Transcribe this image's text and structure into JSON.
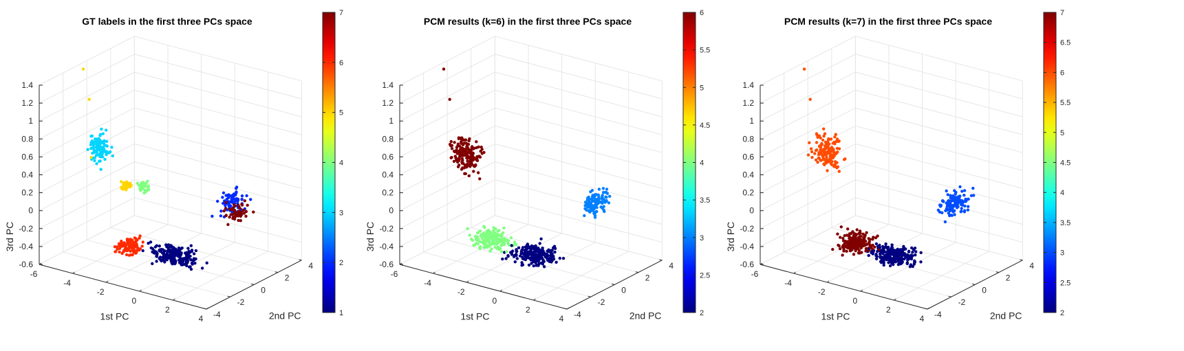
{
  "chart_data": [
    {
      "type": "scatter",
      "title": "GT labels in the first three PCs space",
      "xlabel": "1st PC",
      "ylabel": "2nd PC",
      "zlabel": "3rd PC",
      "xlim": [
        -6,
        4
      ],
      "ylim": [
        -4,
        4
      ],
      "zlim": [
        -0.6,
        1.4
      ],
      "xticks": [
        "-6",
        "-4",
        "-2",
        "0",
        "2",
        "4"
      ],
      "yticks": [
        "-4",
        "-2",
        "0",
        "2",
        "4"
      ],
      "zticks": [
        "-0.6",
        "-0.4",
        "-0.2",
        "0",
        "0.2",
        "0.4",
        "0.6",
        "0.8",
        "1",
        "1.2",
        "1.4"
      ],
      "colorbar": {
        "min": 1,
        "max": 7,
        "ticks": [
          "1",
          "2",
          "3",
          "4",
          "5",
          "6",
          "7"
        ],
        "colormap": "jet"
      },
      "grid": true,
      "clusters": [
        {
          "label": 1,
          "center": [
            0.8,
            -2.2,
            -0.28
          ],
          "spread": [
            1.2,
            0.9,
            0.07
          ],
          "n": 220
        },
        {
          "label": 2,
          "center": [
            1.8,
            1.3,
            0.12
          ],
          "spread": [
            0.35,
            0.9,
            0.13
          ],
          "n": 80
        },
        {
          "label": 3,
          "center": [
            -4.3,
            -1.3,
            0.6
          ],
          "spread": [
            0.6,
            0.3,
            0.15
          ],
          "n": 110
        },
        {
          "label": 4,
          "center": [
            -2.0,
            -0.8,
            0.25
          ],
          "spread": [
            0.4,
            0.3,
            0.06
          ],
          "n": 35
        },
        {
          "label": 5,
          "center": [
            -2.9,
            -1.1,
            0.24
          ],
          "spread": [
            0.35,
            0.25,
            0.06
          ],
          "n": 35
        },
        {
          "label": 6,
          "center": [
            -1.6,
            -2.6,
            -0.28
          ],
          "spread": [
            0.5,
            0.7,
            0.08
          ],
          "n": 110
        },
        {
          "label": 7,
          "center": [
            2.2,
            1.0,
            0.05
          ],
          "spread": [
            0.3,
            0.8,
            0.1
          ],
          "n": 60
        }
      ],
      "outliers": [
        {
          "x": -5.5,
          "y": -1.0,
          "z": 1.4,
          "label": 5
        },
        {
          "x": -5.0,
          "y": -1.2,
          "z": 1.1,
          "label": 5
        },
        {
          "x": -4.6,
          "y": -1.6,
          "z": 0.5,
          "label": 5
        }
      ]
    },
    {
      "type": "scatter",
      "title": "PCM results (k=6) in the first three PCs space",
      "xlabel": "1st PC",
      "ylabel": "2nd PC",
      "zlabel": "3rd PC",
      "xlim": [
        -6,
        4
      ],
      "ylim": [
        -4,
        4
      ],
      "zlim": [
        -0.6,
        1.4
      ],
      "xticks": [
        "-6",
        "-4",
        "-2",
        "0",
        "2",
        "4"
      ],
      "yticks": [
        "-4",
        "-2",
        "0",
        "2",
        "4"
      ],
      "zticks": [
        "-0.6",
        "-0.4",
        "-0.2",
        "0",
        "0.2",
        "0.4",
        "0.6",
        "0.8",
        "1",
        "1.2",
        "1.4"
      ],
      "colorbar": {
        "min": 2,
        "max": 6,
        "ticks": [
          "2",
          "2.5",
          "3",
          "3.5",
          "4",
          "4.5",
          "5",
          "5.5",
          "6"
        ],
        "colormap": "jet"
      },
      "grid": true,
      "clusters": [
        {
          "label": 2,
          "center": [
            0.8,
            -2.2,
            -0.28
          ],
          "spread": [
            1.2,
            0.9,
            0.07
          ],
          "n": 220
        },
        {
          "label": 3,
          "center": [
            1.9,
            1.3,
            0.12
          ],
          "spread": [
            0.35,
            0.9,
            0.13
          ],
          "n": 120
        },
        {
          "label": 4,
          "center": [
            -1.6,
            -2.4,
            -0.22
          ],
          "spread": [
            0.9,
            0.8,
            0.1
          ],
          "n": 170
        },
        {
          "label": 6,
          "center": [
            -4.0,
            -1.2,
            0.55
          ],
          "spread": [
            0.8,
            0.35,
            0.18
          ],
          "n": 180
        }
      ],
      "outliers": [
        {
          "x": -5.5,
          "y": -1.0,
          "z": 1.4,
          "label": 6
        },
        {
          "x": -5.0,
          "y": -1.2,
          "z": 1.1,
          "label": 6
        },
        {
          "x": -4.6,
          "y": -1.6,
          "z": 0.5,
          "label": 6
        }
      ]
    },
    {
      "type": "scatter",
      "title": "PCM results (k=7) in the first three PCs space",
      "xlabel": "1st PC",
      "ylabel": "2nd PC",
      "zlabel": "3rd PC",
      "xlim": [
        -6,
        4
      ],
      "ylim": [
        -4,
        4
      ],
      "zlim": [
        -0.6,
        1.4
      ],
      "xticks": [
        "-6",
        "-4",
        "-2",
        "0",
        "2",
        "4"
      ],
      "yticks": [
        "-4",
        "-2",
        "0",
        "2",
        "4"
      ],
      "zticks": [
        "-0.6",
        "-0.4",
        "-0.2",
        "0",
        "0.2",
        "0.4",
        "0.6",
        "0.8",
        "1",
        "1.2",
        "1.4"
      ],
      "colorbar": {
        "min": 2,
        "max": 7,
        "ticks": [
          "2",
          "2.5",
          "3",
          "3.5",
          "4",
          "4.5",
          "5",
          "5.5",
          "6",
          "6.5",
          "7"
        ],
        "colormap": "jet"
      },
      "grid": true,
      "clusters": [
        {
          "label": 2,
          "center": [
            0.8,
            -2.2,
            -0.28
          ],
          "spread": [
            1.2,
            0.9,
            0.07
          ],
          "n": 220
        },
        {
          "label": 3,
          "center": [
            1.9,
            1.3,
            0.12
          ],
          "spread": [
            0.35,
            0.9,
            0.13
          ],
          "n": 120
        },
        {
          "label": 6,
          "center": [
            -4.0,
            -1.2,
            0.55
          ],
          "spread": [
            0.8,
            0.35,
            0.18
          ],
          "n": 150
        },
        {
          "label": 7,
          "center": [
            -1.4,
            -2.4,
            -0.24
          ],
          "spread": [
            1.0,
            0.8,
            0.09
          ],
          "n": 190
        }
      ],
      "outliers": [
        {
          "x": -5.5,
          "y": -1.0,
          "z": 1.4,
          "label": 6
        },
        {
          "x": -5.0,
          "y": -1.2,
          "z": 1.1,
          "label": 6
        },
        {
          "x": -4.6,
          "y": -1.6,
          "z": 0.5,
          "label": 6
        }
      ]
    }
  ]
}
